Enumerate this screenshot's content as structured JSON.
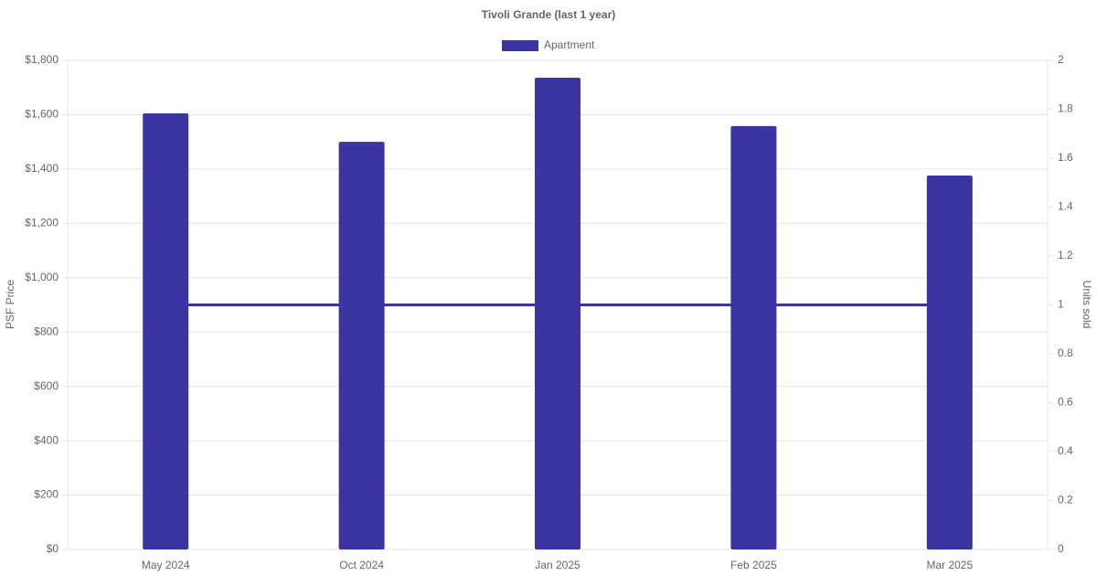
{
  "chart_data": {
    "type": "bar",
    "title": "Tivoli Grande (last 1 year)",
    "categories": [
      "May 2024",
      "Oct 2024",
      "Jan 2025",
      "Feb 2025",
      "Mar 2025"
    ],
    "series": [
      {
        "name": "Apartment",
        "type": "bar",
        "color": "#3a35a0",
        "values": [
          1605,
          1500,
          1736,
          1558,
          1376
        ]
      },
      {
        "type": "line",
        "axis": "y2",
        "color": "#3a35a0",
        "values": [
          1,
          1,
          1,
          1,
          1
        ]
      }
    ],
    "ylabel": "PSF Price",
    "y2label": "Units sold",
    "ylim": [
      0,
      1800
    ],
    "yticks": [
      {
        "value": 0,
        "label": "$0"
      },
      {
        "value": 200,
        "label": "$200"
      },
      {
        "value": 400,
        "label": "$400"
      },
      {
        "value": 600,
        "label": "$600"
      },
      {
        "value": 800,
        "label": "$800"
      },
      {
        "value": 1000,
        "label": "$1,000"
      },
      {
        "value": 1200,
        "label": "$1,200"
      },
      {
        "value": 1400,
        "label": "$1,400"
      },
      {
        "value": 1600,
        "label": "$1,600"
      },
      {
        "value": 1800,
        "label": "$1,800"
      }
    ],
    "y2lim": [
      0,
      2
    ],
    "y2ticks": [
      0,
      0.2,
      0.4,
      0.6,
      0.8,
      1,
      1.2,
      1.4,
      1.6,
      1.8,
      2
    ],
    "grid": true,
    "legend": "top"
  }
}
